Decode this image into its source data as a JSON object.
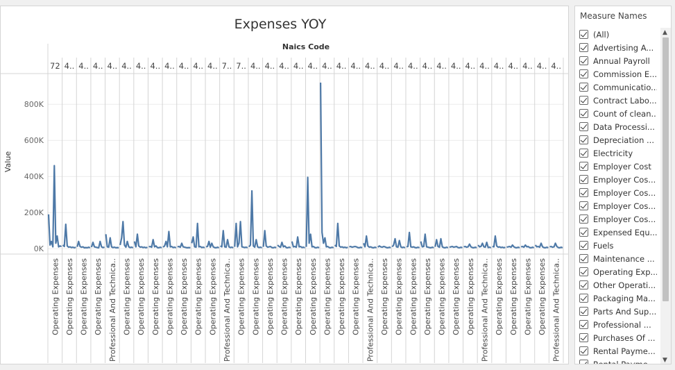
{
  "colors": {
    "line": "#4e79a7",
    "grid": "#ebebeb",
    "axis": "#d4d4d4"
  },
  "chart_data": {
    "type": "line",
    "title": "Expenses YOY",
    "top_axis_label": "Naics Code",
    "ylabel": "Value",
    "ylim": [
      -30000,
      970000
    ],
    "yticks": [
      0,
      200000,
      400000,
      600000,
      800000
    ],
    "ytick_labels": [
      "0K",
      "200K",
      "400K",
      "600K",
      "800K"
    ],
    "header_labels": [
      "72",
      "4..",
      "4..",
      "4..",
      "4..",
      "4..",
      "4..",
      "4..",
      "4..",
      "4..",
      "4..",
      "4..",
      "7..",
      "7..",
      "4..",
      "4..",
      "4..",
      "4..",
      "4..",
      "4..",
      "4..",
      "4..",
      "4..",
      "4..",
      "4..",
      "4..",
      "4..",
      "4..",
      "4..",
      "4..",
      "4..",
      "4..",
      "4..",
      "4..",
      "4..",
      "4.."
    ],
    "column_labels": [
      "Operating Expenses",
      "Operating Expenses",
      "Operating Expenses",
      "Operating Expenses",
      "Professional And Technica..",
      "Operating Expenses",
      "Operating Expenses",
      "Operating Expenses",
      "Operating Expenses",
      "Operating Expenses",
      "Operating Expenses",
      "Operating Expenses",
      "Professional And Technica..",
      "Operating Expenses",
      "Operating Expenses",
      "Operating Expenses",
      "Operating Expenses",
      "Operating Expenses",
      "Operating Expenses",
      "Operating Expenses",
      "Operating Expenses",
      "Operating Expenses",
      "Professional And Technica..",
      "Operating Expenses",
      "Operating Expenses",
      "Operating Expenses",
      "Operating Expenses",
      "Operating Expenses",
      "Operating Expenses",
      "Operating Expenses",
      "Professional And Technica..",
      "Operating Expenses",
      "Operating Expenses",
      "Operating Expenses",
      "Operating Expenses",
      "Professional And Technica.."
    ],
    "series": [
      {
        "values": [
          [
            190000,
            20000,
            40000,
            10000,
            460000,
            30000,
            70000,
            10000,
            15000,
            12000
          ],
          [
            20000,
            12000,
            135000,
            15000,
            8000,
            10000,
            6000,
            8000,
            5000,
            8000
          ],
          [
            10000,
            40000,
            12000,
            8000,
            10000,
            5000,
            6000,
            5000,
            8000,
            5000
          ],
          [
            8000,
            35000,
            10000,
            8000,
            6000,
            5000,
            40000,
            10000,
            6000,
            8000
          ],
          [
            80000,
            10000,
            8000,
            60000,
            10000,
            6000,
            8000,
            5000,
            6000,
            5000
          ],
          [
            20000,
            60000,
            150000,
            20000,
            8000,
            40000,
            10000,
            6000,
            8000,
            5000
          ],
          [
            40000,
            10000,
            80000,
            15000,
            8000,
            10000,
            6000,
            8000,
            5000,
            8000
          ],
          [
            10000,
            12000,
            8000,
            50000,
            10000,
            15000,
            6000,
            5000,
            8000,
            5000
          ],
          [
            8000,
            15000,
            40000,
            10000,
            95000,
            10000,
            12000,
            6000,
            8000,
            5000
          ],
          [
            10000,
            12000,
            8000,
            30000,
            10000,
            8000,
            6000,
            5000,
            6000,
            5000
          ],
          [
            30000,
            65000,
            10000,
            8000,
            140000,
            10000,
            12000,
            6000,
            8000,
            5000
          ],
          [
            10000,
            12000,
            40000,
            8000,
            30000,
            10000,
            6000,
            5000,
            8000,
            5000
          ],
          [
            15000,
            10000,
            100000,
            10000,
            8000,
            50000,
            10000,
            6000,
            8000,
            5000
          ],
          [
            10000,
            140000,
            10000,
            30000,
            150000,
            10000,
            8000,
            6000,
            8000,
            5000
          ],
          [
            10000,
            20000,
            320000,
            15000,
            8000,
            50000,
            10000,
            6000,
            8000,
            5000
          ],
          [
            10000,
            100000,
            15000,
            8000,
            10000,
            12000,
            6000,
            5000,
            8000,
            5000
          ],
          [
            20000,
            12000,
            8000,
            35000,
            10000,
            15000,
            6000,
            5000,
            8000,
            5000
          ],
          [
            40000,
            10000,
            12000,
            8000,
            65000,
            10000,
            12000,
            6000,
            8000,
            5000
          ],
          [
            10000,
            395000,
            30000,
            80000,
            10000,
            12000,
            6000,
            5000,
            8000,
            5000
          ],
          [
            920000,
            90000,
            30000,
            60000,
            10000,
            12000,
            6000,
            5000,
            8000,
            5000
          ],
          [
            20000,
            12000,
            140000,
            15000,
            8000,
            10000,
            6000,
            8000,
            5000,
            8000
          ],
          [
            10000,
            12000,
            8000,
            10000,
            12000,
            10000,
            6000,
            5000,
            8000,
            5000
          ],
          [
            30000,
            10000,
            70000,
            15000,
            8000,
            10000,
            6000,
            5000,
            8000,
            5000
          ],
          [
            8000,
            15000,
            10000,
            8000,
            12000,
            10000,
            6000,
            5000,
            8000,
            5000
          ],
          [
            10000,
            20000,
            55000,
            10000,
            8000,
            45000,
            10000,
            6000,
            8000,
            5000
          ],
          [
            10000,
            12000,
            90000,
            10000,
            8000,
            10000,
            6000,
            5000,
            8000,
            5000
          ],
          [
            40000,
            10000,
            12000,
            80000,
            10000,
            8000,
            6000,
            5000,
            8000,
            5000
          ],
          [
            10000,
            50000,
            12000,
            8000,
            55000,
            10000,
            6000,
            5000,
            8000,
            5000
          ],
          [
            8000,
            10000,
            12000,
            8000,
            10000,
            12000,
            6000,
            5000,
            8000,
            5000
          ],
          [
            10000,
            12000,
            8000,
            10000,
            25000,
            10000,
            6000,
            5000,
            8000,
            5000
          ],
          [
            20000,
            10000,
            12000,
            30000,
            10000,
            8000,
            35000,
            6000,
            8000,
            5000
          ],
          [
            12000,
            10000,
            70000,
            15000,
            8000,
            10000,
            6000,
            8000,
            5000,
            8000
          ],
          [
            8000,
            10000,
            12000,
            8000,
            20000,
            10000,
            6000,
            5000,
            8000,
            5000
          ],
          [
            10000,
            12000,
            8000,
            20000,
            10000,
            12000,
            6000,
            5000,
            8000,
            5000
          ],
          [
            20000,
            10000,
            12000,
            8000,
            30000,
            10000,
            6000,
            5000,
            8000,
            5000
          ],
          [
            10000,
            12000,
            8000,
            10000,
            30000,
            12000,
            6000,
            5000,
            8000,
            5000
          ]
        ]
      }
    ]
  },
  "filter": {
    "title": "Measure Names",
    "items": [
      "(All)",
      "Advertising A...",
      "Annual Payroll",
      "Commission E...",
      "Communicatio...",
      "Contract Labo...",
      "Count of clean...",
      "Data Processi...",
      "Depreciation ...",
      "Electricity",
      "Employer Cost",
      "Employer Cos...",
      "Employer Cos...",
      "Employer Cos...",
      "Employer Cos...",
      "Expensed Equ...",
      "Fuels",
      "Maintenance ...",
      "Operating Exp...",
      "Other Operati...",
      "Packaging Ma...",
      "Parts And Sup...",
      "Professional ...",
      "Purchases Of ...",
      "Rental Payme...",
      "Rental Payme..."
    ]
  }
}
